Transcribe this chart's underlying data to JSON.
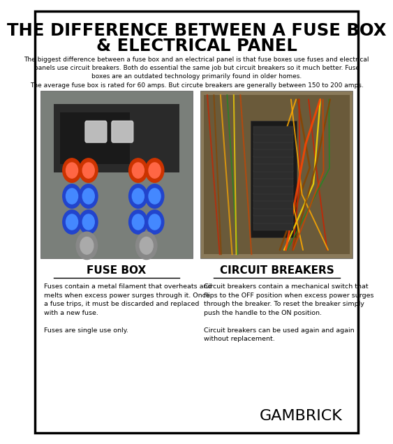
{
  "bg_color": "#ffffff",
  "border_color": "#000000",
  "title_line1": "THE DIFFERENCE BETWEEN A FUSE BOX",
  "title_line2": "& ELECTRICAL PANEL",
  "intro_text": "The biggest difference between a fuse box and an electrical panel is that fuse boxes use fuses and electrical\npanels use circuit breakers. Both do essential the same job but circuit breakers so it much better. Fuse\nboxes are an outdated technology primarily found in older homes.",
  "intro_text2": "The average fuse box is rated for 60 amps. But circute breakers are generally between 150 to 200 amps.",
  "left_label": "FUSE BOX",
  "right_label": "CIRCUIT BREAKERS",
  "left_desc": "Fuses contain a metal filament that overheats and\nmelts when excess power surges through it. Once\na fuse trips, it must be discarded and replaced\nwith a new fuse.\n\nFuses are single use only.",
  "right_desc": "Circuit breakers contain a mechanical switch that\nflips to the OFF position when excess power surges\nthrough the breaker. To reset the breaker simply\npush the handle to the ON position.\n\nCircuit breakers can be used again and again\nwithout replacement.",
  "brand": "GAMBRICK",
  "title_fontsize": 17.5,
  "label_fontsize": 11,
  "body_fontsize": 6.8,
  "brand_fontsize": 16,
  "intro_fontsize": 6.5
}
